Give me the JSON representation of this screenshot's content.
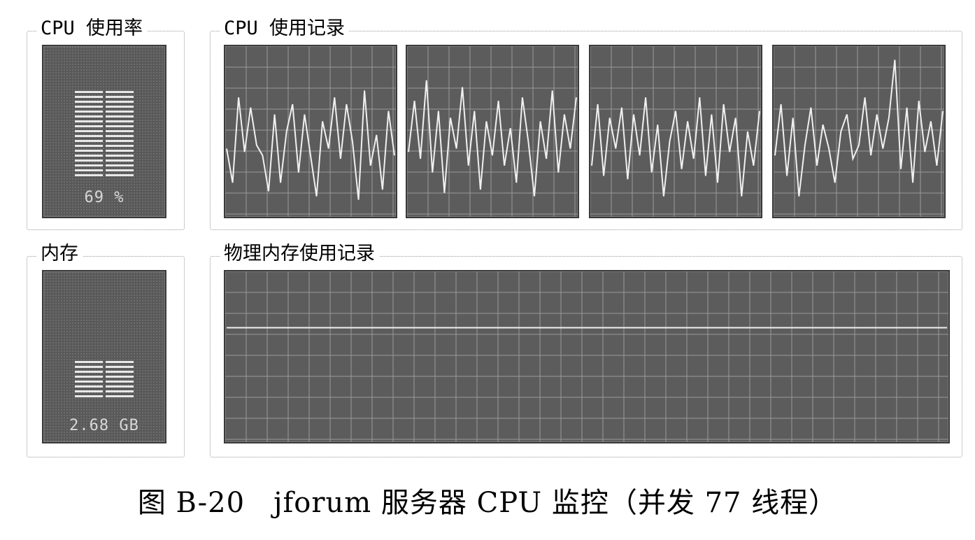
{
  "cpu_usage": {
    "title": "CPU 使用率",
    "value_text": "69 %"
  },
  "cpu_history": {
    "title": "CPU 使用记录"
  },
  "memory": {
    "title": "内存",
    "value_text": "2.68 GB"
  },
  "memory_history": {
    "title": "物理内存使用记录"
  },
  "caption": "图 B-20　jforum 服务器 CPU 监控（并发 77 线程）",
  "colors": {
    "panel_bg": "#5c5c5c",
    "grid": "#9a9a9a",
    "trace": "#f0f0f0",
    "bar_lit": "#e8e8e8"
  },
  "chart_data": [
    {
      "type": "line",
      "series": [
        {
          "values": [
            40,
            20,
            70,
            38,
            64,
            42,
            36,
            15,
            60,
            20,
            50,
            66,
            26,
            60,
            36,
            12,
            56,
            40,
            70,
            34,
            66,
            44,
            10,
            74,
            30,
            48,
            16,
            62,
            36
          ]
        }
      ],
      "ylim": [
        0,
        100
      ],
      "grid": true
    },
    {
      "type": "line",
      "series": [
        {
          "values": [
            38,
            68,
            34,
            80,
            26,
            62,
            14,
            58,
            40,
            76,
            30,
            62,
            16,
            56,
            36,
            68,
            30,
            52,
            20,
            70,
            44,
            12,
            56,
            34,
            74,
            26,
            60,
            40,
            70
          ]
        }
      ],
      "ylim": [
        0,
        100
      ],
      "grid": true
    },
    {
      "type": "line",
      "series": [
        {
          "values": [
            30,
            66,
            24,
            58,
            40,
            64,
            22,
            60,
            36,
            70,
            26,
            54,
            12,
            44,
            62,
            28,
            56,
            34,
            70,
            24,
            60,
            20,
            66,
            38,
            58,
            12,
            50,
            30,
            62
          ]
        }
      ],
      "ylim": [
        0,
        100
      ],
      "grid": true
    },
    {
      "type": "line",
      "series": [
        {
          "values": [
            36,
            66,
            24,
            58,
            12,
            42,
            64,
            30,
            54,
            40,
            20,
            50,
            60,
            34,
            42,
            70,
            36,
            60,
            40,
            58,
            92,
            28,
            64,
            20,
            68,
            38,
            56,
            30,
            62
          ]
        }
      ],
      "ylim": [
        0,
        100
      ],
      "grid": true
    },
    {
      "type": "line",
      "series": [
        {
          "values": [
            67,
            67,
            67,
            67,
            67,
            67,
            67,
            67,
            67,
            67,
            67,
            67,
            67,
            67,
            67,
            67,
            67,
            67,
            67,
            67,
            67,
            67,
            67,
            67,
            67,
            67,
            67,
            67,
            67,
            67,
            67,
            67,
            67,
            67,
            67,
            67,
            67,
            67,
            67,
            67,
            67
          ]
        }
      ],
      "ylim": [
        0,
        100
      ],
      "grid": true
    }
  ]
}
